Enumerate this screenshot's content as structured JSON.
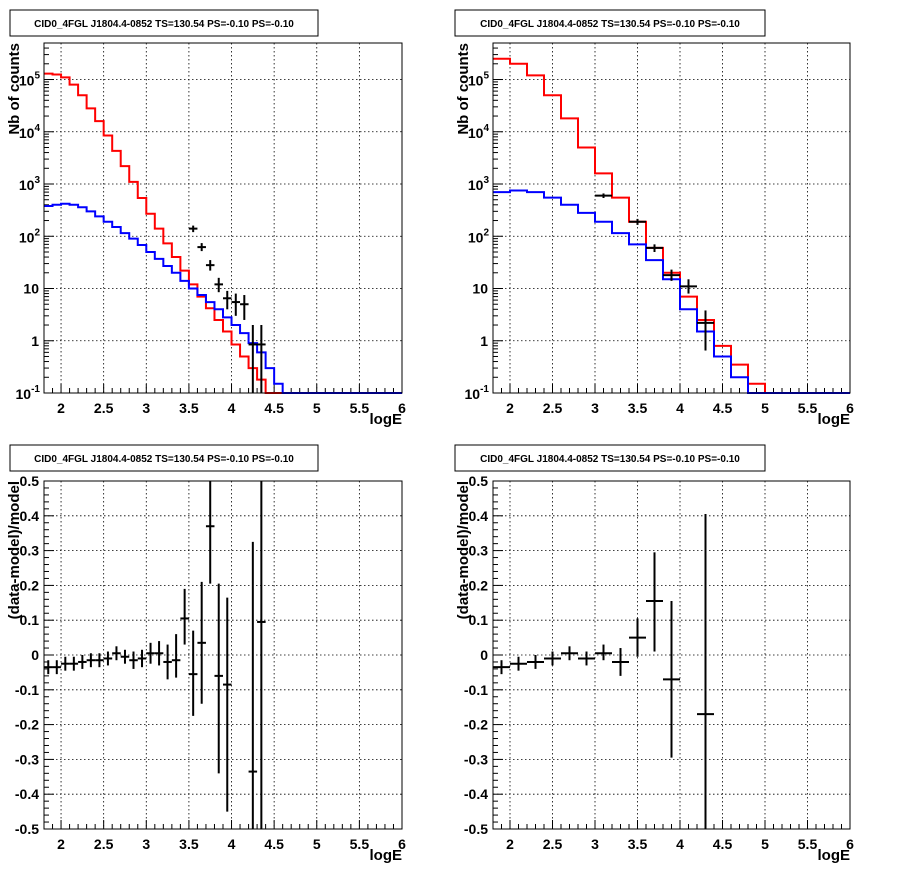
{
  "chart_data": [
    {
      "type": "line",
      "title": "CID0_4FGL J1804.4-0852 TS=130.54 PS=-0.10 PS=-0.10",
      "xlabel": "logE",
      "ylabel": "Nb of counts",
      "log_y": true,
      "xlim": [
        1.8,
        6
      ],
      "ylim": [
        0.1,
        500000
      ],
      "x_ticks": [
        "2",
        "2.5",
        "3",
        "3.5",
        "4",
        "4.5",
        "5",
        "5.5",
        "6"
      ],
      "y_ticks": [
        "10^-1",
        "1",
        "10",
        "10^2",
        "10^3",
        "10^4",
        "10^5"
      ],
      "grid": true,
      "bin_edges": [
        1.8,
        1.9,
        2.0,
        2.1,
        2.2,
        2.3,
        2.4,
        2.5,
        2.6,
        2.7,
        2.8,
        2.9,
        3.0,
        3.1,
        3.2,
        3.3,
        3.4,
        3.5,
        3.6,
        3.7,
        3.8,
        3.9,
        4.0,
        4.1,
        4.2,
        4.3,
        4.4,
        4.5,
        4.6,
        4.7,
        4.8,
        4.9,
        5.0,
        5.1,
        5.2,
        5.3,
        5.4,
        5.5,
        5.6,
        5.7,
        5.8,
        5.9,
        6.0
      ],
      "series": [
        {
          "color": "#ff0000",
          "values": [
            130000,
            125000,
            110000,
            80000,
            50000,
            28000,
            16000,
            8500,
            4300,
            2200,
            1100,
            540,
            270,
            140,
            73,
            40,
            22,
            12,
            7,
            4.2,
            2.5,
            1.5,
            0.85,
            0.5,
            0.3,
            0.18,
            0.1,
            0.1,
            0.1,
            0.1,
            0.1,
            0.1,
            0.1,
            0.1,
            0.1,
            0.1,
            0.1,
            0.1,
            0.1,
            0.1,
            0.1,
            0.1
          ]
        },
        {
          "color": "#0000ff",
          "values": [
            380,
            400,
            420,
            400,
            360,
            300,
            240,
            190,
            150,
            115,
            90,
            68,
            50,
            37,
            27,
            20,
            14,
            10,
            7.5,
            5.5,
            4,
            2.8,
            2,
            1.4,
            0.9,
            0.6,
            0.3,
            0.15,
            0.1,
            0.1,
            0.1,
            0.1,
            0.1,
            0.1,
            0.1,
            0.1,
            0.1,
            0.1,
            0.1,
            0.1,
            0.1,
            0.1
          ]
        }
      ],
      "points": [
        {
          "x": 3.55,
          "y": 140,
          "xerr": 0.05,
          "ylo": 120,
          "yhi": 160
        },
        {
          "x": 3.65,
          "y": 62,
          "xerr": 0.05,
          "ylo": 52,
          "yhi": 74
        },
        {
          "x": 3.75,
          "y": 28,
          "xerr": 0.05,
          "ylo": 22,
          "yhi": 35
        },
        {
          "x": 3.85,
          "y": 12,
          "xerr": 0.05,
          "ylo": 8.5,
          "yhi": 16
        },
        {
          "x": 3.95,
          "y": 6.5,
          "xerr": 0.05,
          "ylo": 4,
          "yhi": 9
        },
        {
          "x": 4.05,
          "y": 5.5,
          "xerr": 0.05,
          "ylo": 3,
          "yhi": 8
        },
        {
          "x": 4.15,
          "y": 5,
          "xerr": 0.05,
          "ylo": 2.5,
          "yhi": 7.5
        },
        {
          "x": 4.25,
          "y": 0.85,
          "xerr": 0.05,
          "ylo": 0.1,
          "yhi": 2
        },
        {
          "x": 4.35,
          "y": 0.85,
          "xerr": 0.05,
          "ylo": 0.1,
          "yhi": 2
        }
      ]
    },
    {
      "type": "line",
      "title": "CID0_4FGL J1804.4-0852 TS=130.54 PS=-0.10 PS=-0.10",
      "xlabel": "logE",
      "ylabel": "Nb of counts",
      "log_y": true,
      "xlim": [
        1.8,
        6
      ],
      "ylim": [
        0.1,
        500000
      ],
      "x_ticks": [
        "2",
        "2.5",
        "3",
        "3.5",
        "4",
        "4.5",
        "5",
        "5.5",
        "6"
      ],
      "y_ticks": [
        "10^-1",
        "1",
        "10",
        "10^2",
        "10^3",
        "10^4",
        "10^5"
      ],
      "grid": true,
      "bin_edges": [
        1.8,
        2.0,
        2.2,
        2.4,
        2.6,
        2.8,
        3.0,
        3.2,
        3.4,
        3.6,
        3.8,
        4.0,
        4.2,
        4.4,
        4.6,
        4.8,
        5.0,
        5.2,
        5.4,
        5.6,
        5.8,
        6.0
      ],
      "series": [
        {
          "color": "#ff0000",
          "values": [
            250000,
            200000,
            120000,
            50000,
            18000,
            5000,
            1600,
            550,
            190,
            60,
            20,
            7,
            2.5,
            0.8,
            0.35,
            0.15,
            0.1,
            0.1,
            0.1,
            0.1,
            0.1
          ]
        },
        {
          "color": "#0000ff",
          "values": [
            700,
            750,
            700,
            550,
            400,
            280,
            190,
            115,
            70,
            35,
            15,
            4,
            1.5,
            0.5,
            0.2,
            0.1,
            0.1,
            0.1,
            0.1,
            0.1,
            0.1
          ]
        }
      ],
      "points": [
        {
          "x": 3.1,
          "y": 600,
          "xerr": 0.1,
          "ylo": 540,
          "yhi": 660
        },
        {
          "x": 3.5,
          "y": 190,
          "xerr": 0.1,
          "ylo": 165,
          "yhi": 215
        },
        {
          "x": 3.7,
          "y": 60,
          "xerr": 0.1,
          "ylo": 50,
          "yhi": 70
        },
        {
          "x": 3.9,
          "y": 18,
          "xerr": 0.1,
          "ylo": 14,
          "yhi": 23
        },
        {
          "x": 4.1,
          "y": 11,
          "xerr": 0.1,
          "ylo": 8,
          "yhi": 15
        },
        {
          "x": 4.3,
          "y": 2.2,
          "xerr": 0.1,
          "ylo": 0.65,
          "yhi": 3.8
        }
      ]
    },
    {
      "type": "scatter",
      "title": "CID0_4FGL J1804.4-0852 TS=130.54 PS=-0.10 PS=-0.10",
      "xlabel": "logE",
      "ylabel": "(data-model)/model",
      "log_y": false,
      "xlim": [
        1.8,
        6
      ],
      "ylim": [
        -0.5,
        0.5
      ],
      "x_ticks": [
        "2",
        "2.5",
        "3",
        "3.5",
        "4",
        "4.5",
        "5",
        "5.5",
        "6"
      ],
      "y_ticks": [
        "-0.5",
        "-0.4",
        "-0.3",
        "-0.2",
        "-0.1",
        "0",
        "0.1",
        "0.2",
        "0.3",
        "0.4",
        "0.5"
      ],
      "grid": true,
      "points": [
        {
          "x": 1.85,
          "y": -0.035,
          "xerr": 0.05,
          "ylo": -0.055,
          "yhi": -0.015
        },
        {
          "x": 1.95,
          "y": -0.035,
          "xerr": 0.05,
          "ylo": -0.055,
          "yhi": -0.015
        },
        {
          "x": 2.05,
          "y": -0.025,
          "xerr": 0.05,
          "ylo": -0.045,
          "yhi": -0.005
        },
        {
          "x": 2.15,
          "y": -0.025,
          "xerr": 0.05,
          "ylo": -0.045,
          "yhi": -0.005
        },
        {
          "x": 2.25,
          "y": -0.02,
          "xerr": 0.05,
          "ylo": -0.04,
          "yhi": 0.0
        },
        {
          "x": 2.35,
          "y": -0.015,
          "xerr": 0.05,
          "ylo": -0.035,
          "yhi": 0.005
        },
        {
          "x": 2.45,
          "y": -0.015,
          "xerr": 0.05,
          "ylo": -0.035,
          "yhi": 0.005
        },
        {
          "x": 2.55,
          "y": -0.01,
          "xerr": 0.05,
          "ylo": -0.03,
          "yhi": 0.01
        },
        {
          "x": 2.65,
          "y": 0.005,
          "xerr": 0.05,
          "ylo": -0.015,
          "yhi": 0.025
        },
        {
          "x": 2.75,
          "y": -0.005,
          "xerr": 0.05,
          "ylo": -0.025,
          "yhi": 0.015
        },
        {
          "x": 2.85,
          "y": -0.015,
          "xerr": 0.05,
          "ylo": -0.04,
          "yhi": 0.01
        },
        {
          "x": 2.95,
          "y": -0.01,
          "xerr": 0.05,
          "ylo": -0.035,
          "yhi": 0.015
        },
        {
          "x": 3.05,
          "y": 0.005,
          "xerr": 0.05,
          "ylo": -0.025,
          "yhi": 0.035
        },
        {
          "x": 3.15,
          "y": 0.005,
          "xerr": 0.05,
          "ylo": -0.03,
          "yhi": 0.04
        },
        {
          "x": 3.25,
          "y": -0.02,
          "xerr": 0.05,
          "ylo": -0.07,
          "yhi": 0.03
        },
        {
          "x": 3.35,
          "y": -0.015,
          "xerr": 0.05,
          "ylo": -0.065,
          "yhi": 0.06
        },
        {
          "x": 3.45,
          "y": 0.105,
          "xerr": 0.05,
          "ylo": 0.03,
          "yhi": 0.19
        },
        {
          "x": 3.55,
          "y": -0.055,
          "xerr": 0.05,
          "ylo": -0.175,
          "yhi": 0.07
        },
        {
          "x": 3.65,
          "y": 0.035,
          "xerr": 0.05,
          "ylo": -0.14,
          "yhi": 0.21
        },
        {
          "x": 3.75,
          "y": 0.37,
          "xerr": 0.05,
          "ylo": 0.205,
          "yhi": 0.5
        },
        {
          "x": 3.85,
          "y": -0.06,
          "xerr": 0.05,
          "ylo": -0.34,
          "yhi": 0.205
        },
        {
          "x": 3.95,
          "y": -0.085,
          "xerr": 0.05,
          "ylo": -0.45,
          "yhi": 0.165
        },
        {
          "x": 4.25,
          "y": -0.335,
          "xerr": 0.05,
          "ylo": -0.5,
          "yhi": 0.325
        },
        {
          "x": 4.35,
          "y": 0.095,
          "xerr": 0.05,
          "ylo": -0.5,
          "yhi": 0.5
        }
      ]
    },
    {
      "type": "scatter",
      "title": "CID0_4FGL J1804.4-0852 TS=130.54 PS=-0.10 PS=-0.10",
      "xlabel": "logE",
      "ylabel": "(data-model)/model",
      "log_y": false,
      "xlim": [
        1.8,
        6
      ],
      "ylim": [
        -0.5,
        0.5
      ],
      "x_ticks": [
        "2",
        "2.5",
        "3",
        "3.5",
        "4",
        "4.5",
        "5",
        "5.5",
        "6"
      ],
      "y_ticks": [
        "-0.5",
        "-0.4",
        "-0.3",
        "-0.2",
        "-0.1",
        "0",
        "0.1",
        "0.2",
        "0.3",
        "0.4",
        "0.5"
      ],
      "grid": true,
      "points": [
        {
          "x": 1.9,
          "y": -0.035,
          "xerr": 0.1,
          "ylo": -0.055,
          "yhi": -0.015
        },
        {
          "x": 2.1,
          "y": -0.025,
          "xerr": 0.1,
          "ylo": -0.045,
          "yhi": -0.005
        },
        {
          "x": 2.3,
          "y": -0.02,
          "xerr": 0.1,
          "ylo": -0.04,
          "yhi": 0.0
        },
        {
          "x": 2.5,
          "y": -0.01,
          "xerr": 0.1,
          "ylo": -0.03,
          "yhi": 0.01
        },
        {
          "x": 2.7,
          "y": 0.005,
          "xerr": 0.1,
          "ylo": -0.015,
          "yhi": 0.025
        },
        {
          "x": 2.9,
          "y": -0.01,
          "xerr": 0.1,
          "ylo": -0.03,
          "yhi": 0.01
        },
        {
          "x": 3.1,
          "y": 0.005,
          "xerr": 0.1,
          "ylo": -0.015,
          "yhi": 0.03
        },
        {
          "x": 3.3,
          "y": -0.02,
          "xerr": 0.1,
          "ylo": -0.06,
          "yhi": 0.02
        },
        {
          "x": 3.5,
          "y": 0.05,
          "xerr": 0.1,
          "ylo": -0.005,
          "yhi": 0.105
        },
        {
          "x": 3.7,
          "y": 0.155,
          "xerr": 0.1,
          "ylo": 0.01,
          "yhi": 0.295
        },
        {
          "x": 3.9,
          "y": -0.07,
          "xerr": 0.1,
          "ylo": -0.295,
          "yhi": 0.155
        },
        {
          "x": 4.3,
          "y": -0.17,
          "xerr": 0.1,
          "ylo": -0.5,
          "yhi": 0.405
        }
      ]
    }
  ]
}
